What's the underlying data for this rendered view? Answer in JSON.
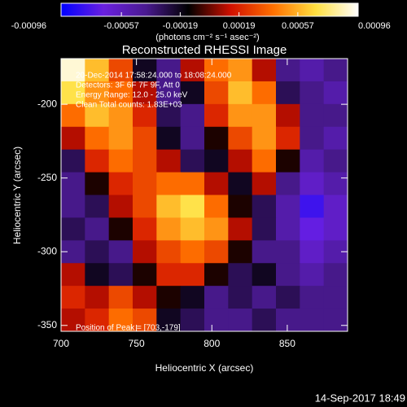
{
  "chart_data": {
    "type": "image",
    "title": "Reconstructed RHESSI Image",
    "xlabel": "Heliocentric X (arcsec)",
    "ylabel": "Heliocentric Y (arcsec)",
    "xlim": [
      700,
      890
    ],
    "ylim": [
      -354,
      -169
    ],
    "xticks": [
      700,
      750,
      800,
      850
    ],
    "yticks": [
      -200,
      -250,
      -300,
      -350
    ],
    "colorbar_label": "(photons cm⁻² s⁻¹ asec⁻²)",
    "colorbar_lim": [
      -0.00096,
      0.00096
    ],
    "colorbar_ticks": [
      -0.00096,
      -0.00057,
      -0.00019,
      0.00019,
      0.00057,
      0.00096
    ],
    "colormap": [
      "#0000ff",
      "#6a20e0",
      "#4a1a90",
      "#000000",
      "#d01000",
      "#ff7000",
      "#ffe040",
      "#ffffff"
    ],
    "annotations": [
      "20-Dec-2014 17:58:24.000 to 18:08:24.000",
      "Detectors: 3F 6F 7F 9F, Att 0",
      "Energy Range: 12.0 - 25.0 keV",
      "Clean    Total counts: 1.83E+03"
    ],
    "peak_label": "Position of Peak = [703,-179]",
    "footer": "14-Sep-2017 18:49",
    "z": [
      [
        0.0009,
        0.0006,
        0.0003,
        -0.0002,
        -0.0004,
        0.0001,
        0.0004,
        0.0005,
        0.0001,
        -0.0004,
        -0.0005,
        -0.0004
      ],
      [
        0.0007,
        0.0005,
        0.0004,
        0.0001,
        -0.0004,
        -0.0002,
        0.0003,
        0.0006,
        0.0004,
        -0.0003,
        -0.0004,
        -0.0005
      ],
      [
        0.0004,
        0.0006,
        0.0005,
        0.0002,
        -0.0003,
        -0.0004,
        0.0002,
        0.0005,
        0.0005,
        0.0001,
        -0.0004,
        -0.0004
      ],
      [
        0.0001,
        0.0004,
        0.0005,
        0.0003,
        -0.0002,
        -0.0004,
        -0.0001,
        0.0003,
        0.0005,
        0.0002,
        -0.0004,
        -0.0005
      ],
      [
        -0.0003,
        0.0002,
        0.0004,
        0.0003,
        0.0001,
        -0.0003,
        -0.0002,
        0.0001,
        0.0004,
        -0.0001,
        -0.0005,
        -0.0004
      ],
      [
        -0.0004,
        -0.0001,
        0.0002,
        0.0003,
        0.0004,
        0.0004,
        0.0001,
        -0.0002,
        0.0001,
        -0.0004,
        -0.0006,
        -0.0005
      ],
      [
        -0.0004,
        -0.0003,
        0.0001,
        0.0003,
        0.0006,
        0.0007,
        0.0004,
        -0.0001,
        -0.0003,
        -0.0005,
        -0.0008,
        -0.0006
      ],
      [
        -0.0003,
        -0.0004,
        -0.0001,
        0.0002,
        0.0005,
        0.0006,
        0.0005,
        0.0001,
        -0.0003,
        -0.0005,
        -0.0007,
        -0.0006
      ],
      [
        -0.0004,
        -0.0003,
        -0.0004,
        0.0001,
        0.0003,
        0.0004,
        0.0003,
        -0.0001,
        -0.0004,
        -0.0004,
        -0.0006,
        -0.0005
      ],
      [
        0.0001,
        -0.0002,
        -0.0003,
        -0.0001,
        0.0002,
        0.0002,
        -0.0001,
        -0.0003,
        -0.0002,
        -0.0004,
        -0.0005,
        -0.0004
      ],
      [
        0.0002,
        0.0001,
        0.0003,
        0.0001,
        -0.0001,
        -0.0002,
        -0.0004,
        -0.0003,
        -0.0004,
        -0.0003,
        -0.0004,
        -0.0004
      ],
      [
        0.0001,
        0.0002,
        0.0004,
        0.0003,
        -0.0002,
        -0.0003,
        -0.0004,
        -0.0004,
        -0.0003,
        -0.0004,
        -0.0004,
        -0.0004
      ]
    ]
  }
}
